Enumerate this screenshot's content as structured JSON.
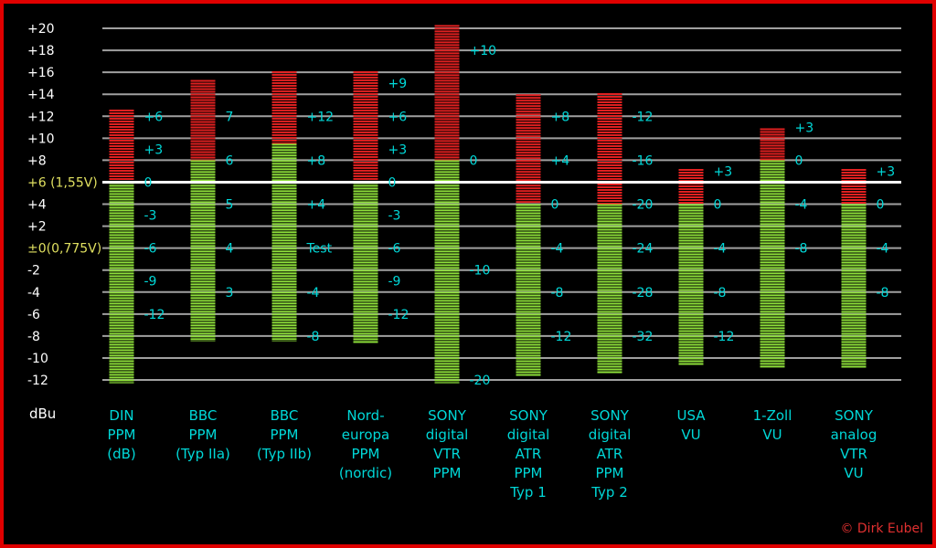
{
  "chart_data": {
    "type": "bar",
    "colors": {
      "background": "#000000",
      "frame": "#e00000",
      "grid": "#a0a0a0",
      "reference_line": "#ffffff",
      "scale_text": "#ffffff",
      "reference_text": "#e0e060",
      "meter_text": "#00d8d8",
      "green_segment": "#8ee03a",
      "red_segment": "#e02020",
      "copyright": "#e03030"
    },
    "y_axis": {
      "unit_label": "dBu",
      "range": [
        -12,
        20
      ],
      "grid_step": 2,
      "reference_value": 6,
      "ticks": [
        {
          "value": 20,
          "label": "+20"
        },
        {
          "value": 18,
          "label": "+18"
        },
        {
          "value": 16,
          "label": "+16"
        },
        {
          "value": 14,
          "label": "+14"
        },
        {
          "value": 12,
          "label": "+12"
        },
        {
          "value": 10,
          "label": "+10"
        },
        {
          "value": 8,
          "label": "+8"
        },
        {
          "value": 6,
          "label": "+6 (1,55V)",
          "style": "reference"
        },
        {
          "value": 4,
          "label": "+4"
        },
        {
          "value": 2,
          "label": "+2"
        },
        {
          "value": 0,
          "label": "±0(0,775V)",
          "style": "reference"
        },
        {
          "value": -2,
          "label": "-2"
        },
        {
          "value": -4,
          "label": "-4"
        },
        {
          "value": -6,
          "label": "-6"
        },
        {
          "value": -8,
          "label": "-8"
        },
        {
          "value": -10,
          "label": "-10"
        },
        {
          "value": -12,
          "label": "-12"
        }
      ]
    },
    "meters": [
      {
        "name": "DIN\nPPM\n(dB)",
        "green": [
          -12.3,
          6
        ],
        "red": [
          6,
          12.6
        ],
        "marks": [
          {
            "label": "+6",
            "y": 12
          },
          {
            "label": "+3",
            "y": 9
          },
          {
            "label": "0",
            "y": 6
          },
          {
            "label": "-3",
            "y": 3
          },
          {
            "label": "-6",
            "y": 0
          },
          {
            "label": "-9",
            "y": -3
          },
          {
            "label": "-12",
            "y": -6
          }
        ]
      },
      {
        "name": "BBC\nPPM\n(Typ IIa)",
        "green": [
          -8.5,
          8
        ],
        "red": [
          8,
          15.3
        ],
        "marks": [
          {
            "label": "7",
            "y": 12
          },
          {
            "label": "6",
            "y": 8
          },
          {
            "label": "5",
            "y": 4
          },
          {
            "label": "4",
            "y": 0
          },
          {
            "label": "3",
            "y": -4
          }
        ]
      },
      {
        "name": "BBC\nPPM\n(Typ IIb)",
        "green": [
          -8.5,
          9.5
        ],
        "red": [
          9.5,
          16.1
        ],
        "marks": [
          {
            "label": "+12",
            "y": 12
          },
          {
            "label": "+8",
            "y": 8
          },
          {
            "label": "+4",
            "y": 4
          },
          {
            "label": "Test",
            "y": 0
          },
          {
            "label": "-4",
            "y": -4
          },
          {
            "label": "-8",
            "y": -8
          }
        ]
      },
      {
        "name": "Nord-\neuropa\nPPM\n(nordic)",
        "green": [
          -8.7,
          6
        ],
        "red": [
          6,
          16.1
        ],
        "marks": [
          {
            "label": "+9",
            "y": 15
          },
          {
            "label": "+6",
            "y": 12
          },
          {
            "label": "+3",
            "y": 9
          },
          {
            "label": "0",
            "y": 6
          },
          {
            "label": "-3",
            "y": 3
          },
          {
            "label": "-6",
            "y": 0
          },
          {
            "label": "-9",
            "y": -3
          },
          {
            "label": "-12",
            "y": -6
          }
        ]
      },
      {
        "name": "SONY\ndigital\nVTR\nPPM",
        "green": [
          -12.3,
          8
        ],
        "red": [
          8,
          20.3
        ],
        "marks": [
          {
            "label": "+10",
            "y": 18
          },
          {
            "label": "0",
            "y": 8
          },
          {
            "label": "-10",
            "y": -2
          },
          {
            "label": "-20",
            "y": -12
          }
        ]
      },
      {
        "name": "SONY\ndigital\nATR\nPPM\nTyp 1",
        "green": [
          -11.7,
          4
        ],
        "red": [
          4,
          14
        ],
        "marks": [
          {
            "label": "+8",
            "y": 12
          },
          {
            "label": "+4",
            "y": 8
          },
          {
            "label": "0",
            "y": 4
          },
          {
            "label": "-4",
            "y": 0
          },
          {
            "label": "-8",
            "y": -4
          },
          {
            "label": "-12",
            "y": -8
          }
        ]
      },
      {
        "name": "SONY\ndigital\nATR\nPPM\nTyp 2",
        "green": [
          -11.5,
          4
        ],
        "red": [
          4,
          14.1
        ],
        "marks": [
          {
            "label": "-12",
            "y": 12
          },
          {
            "label": "-16",
            "y": 8
          },
          {
            "label": "-20",
            "y": 4
          },
          {
            "label": "-24",
            "y": 0
          },
          {
            "label": "-28",
            "y": -4
          },
          {
            "label": "-32",
            "y": -8
          }
        ]
      },
      {
        "name": "USA\nVU",
        "green": [
          -10.7,
          4
        ],
        "red": [
          4,
          7.2
        ],
        "marks": [
          {
            "label": "+3",
            "y": 7
          },
          {
            "label": "0",
            "y": 4
          },
          {
            "label": "-4",
            "y": 0
          },
          {
            "label": "-8",
            "y": -4
          },
          {
            "label": "-12",
            "y": -8
          }
        ]
      },
      {
        "name": "1-Zoll\nVU",
        "green": [
          -10.9,
          8
        ],
        "red": [
          8,
          10.9
        ],
        "marks": [
          {
            "label": "+3",
            "y": 11
          },
          {
            "label": "0",
            "y": 8
          },
          {
            "label": "-4",
            "y": 4
          },
          {
            "label": "-8",
            "y": 0
          }
        ]
      },
      {
        "name": "SONY\nanalog\nVTR\nVU",
        "green": [
          -10.9,
          4
        ],
        "red": [
          4,
          7.2
        ],
        "marks": [
          {
            "label": "+3",
            "y": 7
          },
          {
            "label": "0",
            "y": 4
          },
          {
            "label": "-4",
            "y": 0
          },
          {
            "label": "-8",
            "y": -4
          }
        ]
      }
    ],
    "copyright": "© Dirk Eubel"
  }
}
